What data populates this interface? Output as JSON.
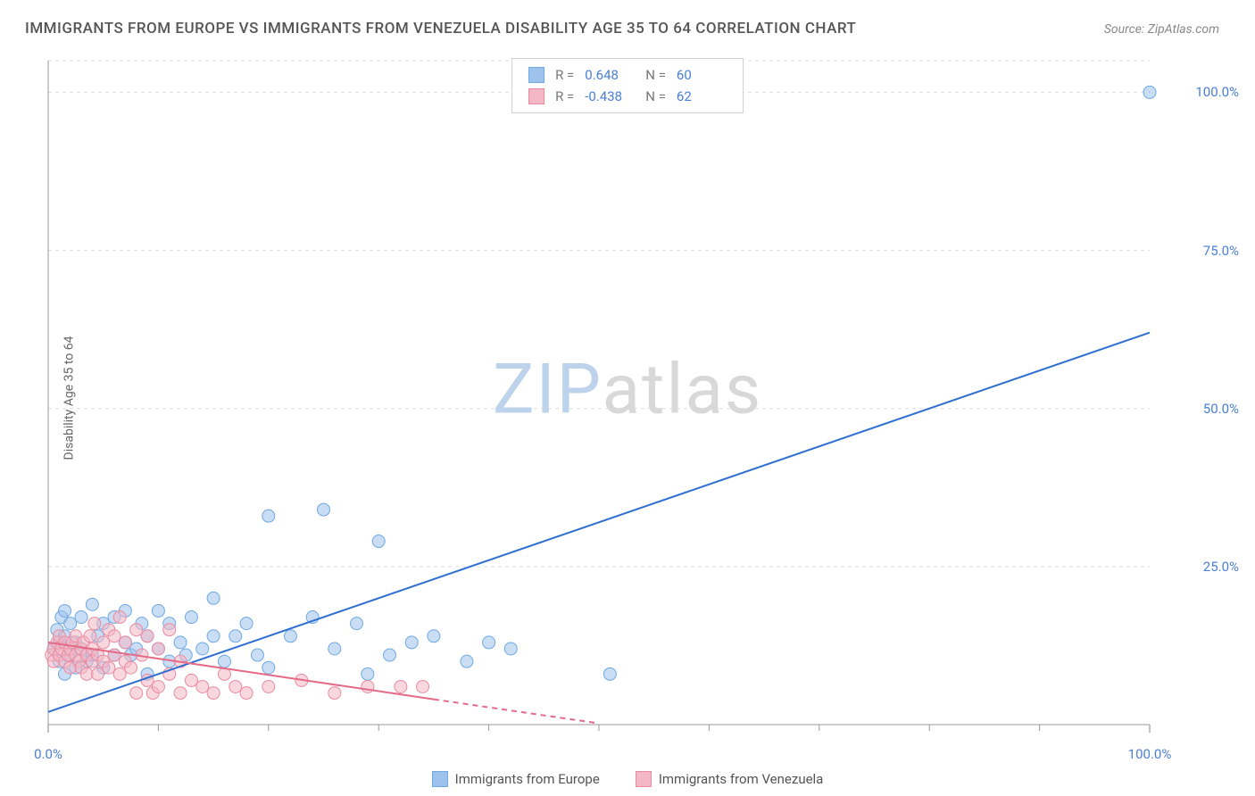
{
  "title": "IMMIGRANTS FROM EUROPE VS IMMIGRANTS FROM VENEZUELA DISABILITY AGE 35 TO 64 CORRELATION CHART",
  "source_label": "Source: ",
  "source_name": "ZipAtlas.com",
  "y_axis_label": "Disability Age 35 to 64",
  "watermark": {
    "text_a": "ZIP",
    "text_b": "atlas",
    "color_a": "#bcd3eb",
    "color_b": "#d8d8d8"
  },
  "chart": {
    "type": "scatter",
    "xlim": [
      0,
      100
    ],
    "ylim": [
      0,
      105
    ],
    "x_ticks": [
      0,
      100
    ],
    "x_tick_labels": [
      "0.0%",
      "100.0%"
    ],
    "x_minor_ticks": [
      10,
      20,
      30,
      40,
      50,
      60,
      70,
      80,
      90
    ],
    "y_ticks": [
      25,
      50,
      75,
      100
    ],
    "y_tick_labels": [
      "25.0%",
      "50.0%",
      "75.0%",
      "100.0%"
    ],
    "grid_color": "#dddddd",
    "axis_color": "#999999",
    "tick_label_color": "#4a7fd6",
    "background_color": "#ffffff",
    "marker_radius": 7,
    "marker_opacity": 0.55,
    "line_width": 2
  },
  "series": [
    {
      "key": "europe",
      "label": "Immigrants from Europe",
      "color_fill": "#9dc3ec",
      "color_stroke": "#6fa8e2",
      "r_value": "0.648",
      "n_value": "60",
      "trend": {
        "x1": 0,
        "y1": 2,
        "x2": 100,
        "y2": 62,
        "dash": false,
        "color": "#2e6fd1"
      },
      "points": [
        [
          0.5,
          12
        ],
        [
          0.8,
          15
        ],
        [
          1,
          13
        ],
        [
          1,
          10
        ],
        [
          1.2,
          17
        ],
        [
          1.5,
          14
        ],
        [
          1.5,
          18
        ],
        [
          1.5,
          8
        ],
        [
          2,
          16
        ],
        [
          2,
          11
        ],
        [
          2.5,
          9
        ],
        [
          2.5,
          13
        ],
        [
          3,
          12
        ],
        [
          3,
          17
        ],
        [
          3.5,
          10
        ],
        [
          4,
          19
        ],
        [
          4,
          11
        ],
        [
          4.5,
          14
        ],
        [
          5,
          16
        ],
        [
          5,
          9
        ],
        [
          6,
          11
        ],
        [
          6,
          17
        ],
        [
          7,
          13
        ],
        [
          7,
          18
        ],
        [
          7.5,
          11
        ],
        [
          8,
          12
        ],
        [
          8.5,
          16
        ],
        [
          9,
          8
        ],
        [
          9,
          14
        ],
        [
          10,
          18
        ],
        [
          10,
          12
        ],
        [
          11,
          10
        ],
        [
          11,
          16
        ],
        [
          12,
          13
        ],
        [
          12.5,
          11
        ],
        [
          13,
          17
        ],
        [
          14,
          12
        ],
        [
          15,
          14
        ],
        [
          15,
          20
        ],
        [
          16,
          10
        ],
        [
          17,
          14
        ],
        [
          18,
          16
        ],
        [
          19,
          11
        ],
        [
          20,
          33
        ],
        [
          20,
          9
        ],
        [
          22,
          14
        ],
        [
          24,
          17
        ],
        [
          25,
          34
        ],
        [
          26,
          12
        ],
        [
          28,
          16
        ],
        [
          29,
          8
        ],
        [
          30,
          29
        ],
        [
          31,
          11
        ],
        [
          33,
          13
        ],
        [
          35,
          14
        ],
        [
          38,
          10
        ],
        [
          40,
          13
        ],
        [
          42,
          12
        ],
        [
          51,
          8
        ],
        [
          100,
          100
        ]
      ]
    },
    {
      "key": "venezuela",
      "label": "Immigrants from Venezuela",
      "color_fill": "#f4b7c4",
      "color_stroke": "#e98ba0",
      "r_value": "-0.438",
      "n_value": "62",
      "trend": {
        "x1": 0,
        "y1": 13,
        "x2": 35,
        "y2": 4,
        "dash": false,
        "color": "#e46a87"
      },
      "trend_ext": {
        "x1": 35,
        "y1": 4,
        "x2": 50,
        "y2": 0.2,
        "dash": true,
        "color": "#e46a87"
      },
      "points": [
        [
          0.3,
          11
        ],
        [
          0.5,
          12
        ],
        [
          0.5,
          10
        ],
        [
          0.8,
          13
        ],
        [
          1,
          11
        ],
        [
          1,
          14
        ],
        [
          1.2,
          12
        ],
        [
          1.5,
          10
        ],
        [
          1.5,
          13
        ],
        [
          1.8,
          11
        ],
        [
          2,
          12
        ],
        [
          2,
          9
        ],
        [
          2.2,
          13
        ],
        [
          2.5,
          11
        ],
        [
          2.5,
          14
        ],
        [
          2.8,
          10
        ],
        [
          3,
          12
        ],
        [
          3,
          9
        ],
        [
          3.2,
          13
        ],
        [
          3.5,
          11
        ],
        [
          3.5,
          8
        ],
        [
          3.8,
          14
        ],
        [
          4,
          10
        ],
        [
          4,
          12
        ],
        [
          4.2,
          16
        ],
        [
          4.5,
          11
        ],
        [
          4.5,
          8
        ],
        [
          5,
          13
        ],
        [
          5,
          10
        ],
        [
          5.5,
          15
        ],
        [
          5.5,
          9
        ],
        [
          6,
          11
        ],
        [
          6,
          14
        ],
        [
          6.5,
          8
        ],
        [
          6.5,
          17
        ],
        [
          7,
          10
        ],
        [
          7,
          13
        ],
        [
          7.5,
          9
        ],
        [
          8,
          15
        ],
        [
          8,
          5
        ],
        [
          8.5,
          11
        ],
        [
          9,
          14
        ],
        [
          9,
          7
        ],
        [
          9.5,
          5
        ],
        [
          10,
          12
        ],
        [
          10,
          6
        ],
        [
          11,
          15
        ],
        [
          11,
          8
        ],
        [
          12,
          5
        ],
        [
          12,
          10
        ],
        [
          13,
          7
        ],
        [
          14,
          6
        ],
        [
          15,
          5
        ],
        [
          16,
          8
        ],
        [
          17,
          6
        ],
        [
          18,
          5
        ],
        [
          20,
          6
        ],
        [
          23,
          7
        ],
        [
          26,
          5
        ],
        [
          29,
          6
        ],
        [
          32,
          6
        ],
        [
          34,
          6
        ]
      ]
    }
  ],
  "r_legend": {
    "r_label": "R =",
    "n_label": "N =",
    "value_color": "#4a7fd6"
  },
  "bottom_legend_colors": {
    "europe_fill": "#9dc3ec",
    "europe_border": "#6fa8e2",
    "venezuela_fill": "#f4b7c4",
    "venezuela_border": "#e98ba0"
  }
}
